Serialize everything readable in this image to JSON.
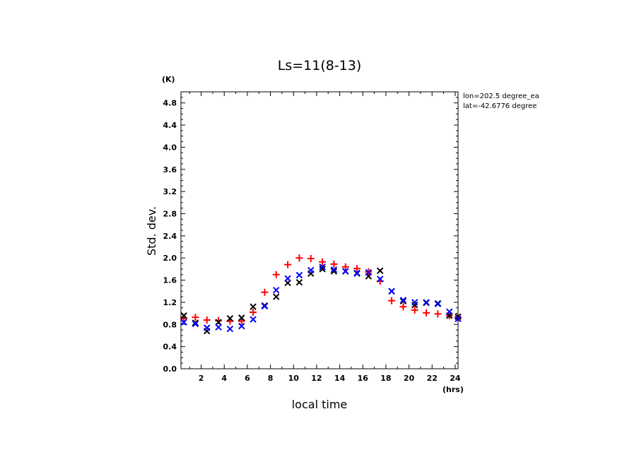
{
  "chart_data": {
    "type": "scatter",
    "title": "Ls=11(8-13)",
    "xlabel": "local time",
    "ylabel": "Std. dev.",
    "x_unit": "(hrs)",
    "y_unit": "(K)",
    "annotations": [
      "lon=202.5 degree_ea",
      "lat=-42.6776 degree"
    ],
    "xlim": [
      0.25,
      24.25
    ],
    "ylim": [
      0.0,
      5.0
    ],
    "x_ticks": [
      2,
      4,
      6,
      8,
      10,
      12,
      14,
      16,
      18,
      20,
      22,
      24
    ],
    "y_ticks": [
      0.0,
      0.4,
      0.8,
      1.2,
      1.6,
      2.0,
      2.4,
      2.8,
      3.2,
      3.6,
      4.0,
      4.4,
      4.8
    ],
    "x_tick_labels": [
      "2",
      "4",
      "6",
      "8",
      "10",
      "12",
      "14",
      "16",
      "18",
      "20",
      "22",
      "24"
    ],
    "y_tick_labels": [
      "0.0",
      "0.4",
      "0.8",
      "1.2",
      "1.6",
      "2.0",
      "2.4",
      "2.8",
      "3.2",
      "3.6",
      "4.0",
      "4.4",
      "4.8"
    ],
    "grid": false,
    "x": [
      0.5,
      1.5,
      2.5,
      3.5,
      4.5,
      5.5,
      6.5,
      7.5,
      8.5,
      9.5,
      10.5,
      11.5,
      12.5,
      13.5,
      14.5,
      15.5,
      16.5,
      17.5,
      18.5,
      19.5,
      20.5,
      21.5,
      22.5,
      23.5,
      24.5
    ],
    "series": [
      {
        "marker": "+",
        "color": "#ff0000",
        "values": [
          0.91,
          0.93,
          0.88,
          0.87,
          0.86,
          0.86,
          1.02,
          1.38,
          1.7,
          1.88,
          2.0,
          1.99,
          1.93,
          1.89,
          1.84,
          1.81,
          1.75,
          1.58,
          1.23,
          1.12,
          1.06,
          1.01,
          0.99,
          0.96,
          0.92
        ]
      },
      {
        "marker": "x",
        "color": "#000000",
        "values": [
          0.96,
          0.83,
          0.68,
          0.84,
          0.91,
          0.92,
          1.12,
          1.14,
          1.3,
          1.55,
          1.56,
          1.72,
          1.8,
          1.76,
          1.76,
          1.72,
          1.67,
          1.77,
          1.4,
          1.22,
          1.15,
          1.19,
          1.18,
          0.96,
          0.94
        ]
      },
      {
        "marker": "x",
        "color": "#0000ff",
        "values": [
          0.84,
          0.81,
          0.74,
          0.75,
          0.72,
          0.77,
          0.89,
          1.13,
          1.42,
          1.63,
          1.69,
          1.78,
          1.84,
          1.79,
          1.76,
          1.73,
          1.74,
          1.62,
          1.4,
          1.24,
          1.2,
          1.2,
          1.17,
          1.03,
          0.9
        ]
      }
    ]
  }
}
